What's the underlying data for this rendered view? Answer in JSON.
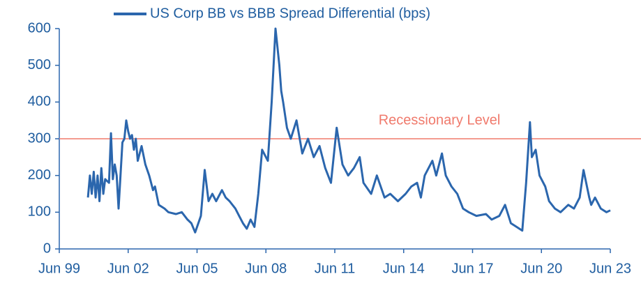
{
  "chart_data": {
    "type": "line",
    "series": [
      {
        "name": "US Corp BB vs BBB Spread Differential (bps)",
        "color": "#2b66ad",
        "x": [
          "2000-09",
          "2000-10",
          "2000-11",
          "2000-12",
          "2001-01",
          "2001-02",
          "2001-03",
          "2001-04",
          "2001-05",
          "2001-06",
          "2001-08",
          "2001-09",
          "2001-10",
          "2001-11",
          "2001-12",
          "2002-01",
          "2002-03",
          "2002-04",
          "2002-05",
          "2002-06",
          "2002-07",
          "2002-08",
          "2002-09",
          "2002-10",
          "2002-11",
          "2003-01",
          "2003-03",
          "2003-05",
          "2003-07",
          "2003-08",
          "2003-10",
          "2004-01",
          "2004-03",
          "2004-07",
          "2004-10",
          "2005-01",
          "2005-03",
          "2005-05",
          "2005-08",
          "2005-10",
          "2005-12",
          "2006-02",
          "2006-04",
          "2006-07",
          "2006-09",
          "2006-11",
          "2007-02",
          "2007-04",
          "2007-06",
          "2007-08",
          "2007-10",
          "2007-12",
          "2008-02",
          "2008-04",
          "2008-07",
          "2008-09",
          "2008-11",
          "2009-01",
          "2009-02",
          "2009-03",
          "2009-05",
          "2009-07",
          "2009-10",
          "2010-01",
          "2010-04",
          "2010-07",
          "2010-10",
          "2011-01",
          "2011-04",
          "2011-07",
          "2011-10",
          "2012-01",
          "2012-04",
          "2012-07",
          "2012-09",
          "2013-01",
          "2013-04",
          "2013-08",
          "2013-11",
          "2014-03",
          "2014-07",
          "2014-10",
          "2015-01",
          "2015-03",
          "2015-05",
          "2015-09",
          "2015-11",
          "2016-02",
          "2016-04",
          "2016-07",
          "2016-10",
          "2017-01",
          "2017-04",
          "2017-08",
          "2018-01",
          "2018-04",
          "2018-08",
          "2018-11",
          "2019-02",
          "2019-05",
          "2019-08",
          "2019-10",
          "2019-12",
          "2020-01",
          "2020-03",
          "2020-05",
          "2020-08",
          "2020-10",
          "2021-01",
          "2021-04",
          "2021-08",
          "2021-11",
          "2022-02",
          "2022-04",
          "2022-07",
          "2022-08",
          "2022-10",
          "2023-01",
          "2023-04",
          "2023-06"
        ],
        "values": [
          140,
          200,
          150,
          210,
          140,
          200,
          130,
          220,
          150,
          190,
          180,
          315,
          190,
          230,
          200,
          110,
          290,
          300,
          350,
          320,
          300,
          310,
          270,
          300,
          240,
          280,
          230,
          200,
          160,
          170,
          120,
          110,
          100,
          95,
          100,
          80,
          70,
          45,
          90,
          215,
          130,
          150,
          130,
          160,
          140,
          130,
          110,
          90,
          70,
          55,
          80,
          60,
          150,
          270,
          240,
          400,
          600,
          500,
          430,
          400,
          330,
          300,
          350,
          260,
          300,
          250,
          280,
          220,
          180,
          330,
          230,
          200,
          220,
          250,
          180,
          150,
          200,
          140,
          150,
          130,
          150,
          170,
          180,
          140,
          200,
          240,
          200,
          260,
          200,
          170,
          150,
          110,
          100,
          90,
          95,
          80,
          90,
          120,
          70,
          60,
          50,
          180,
          345,
          250,
          270,
          200,
          170,
          130,
          110,
          100,
          120,
          110,
          140,
          215,
          140,
          120,
          140,
          110,
          100,
          105
        ]
      }
    ],
    "xlim": [
      "1999-06",
      "2023-06"
    ],
    "xticks": [
      {
        "value": "1999-06",
        "label": "Jun 99"
      },
      {
        "value": "2002-06",
        "label": "Jun 02"
      },
      {
        "value": "2005-06",
        "label": "Jun 05"
      },
      {
        "value": "2008-06",
        "label": "Jun 08"
      },
      {
        "value": "2011-06",
        "label": "Jun 11"
      },
      {
        "value": "2014-06",
        "label": "Jun 14"
      },
      {
        "value": "2017-06",
        "label": "Jun 17"
      },
      {
        "value": "2020-06",
        "label": "Jun 20"
      },
      {
        "value": "2023-06",
        "label": "Jun 23"
      }
    ],
    "ylim": [
      0,
      600
    ],
    "yticks": [
      0,
      100,
      200,
      300,
      400,
      500,
      600
    ],
    "reference_line": {
      "value": 300,
      "label": "Recessionary Level",
      "color": "#f07a6c"
    }
  }
}
